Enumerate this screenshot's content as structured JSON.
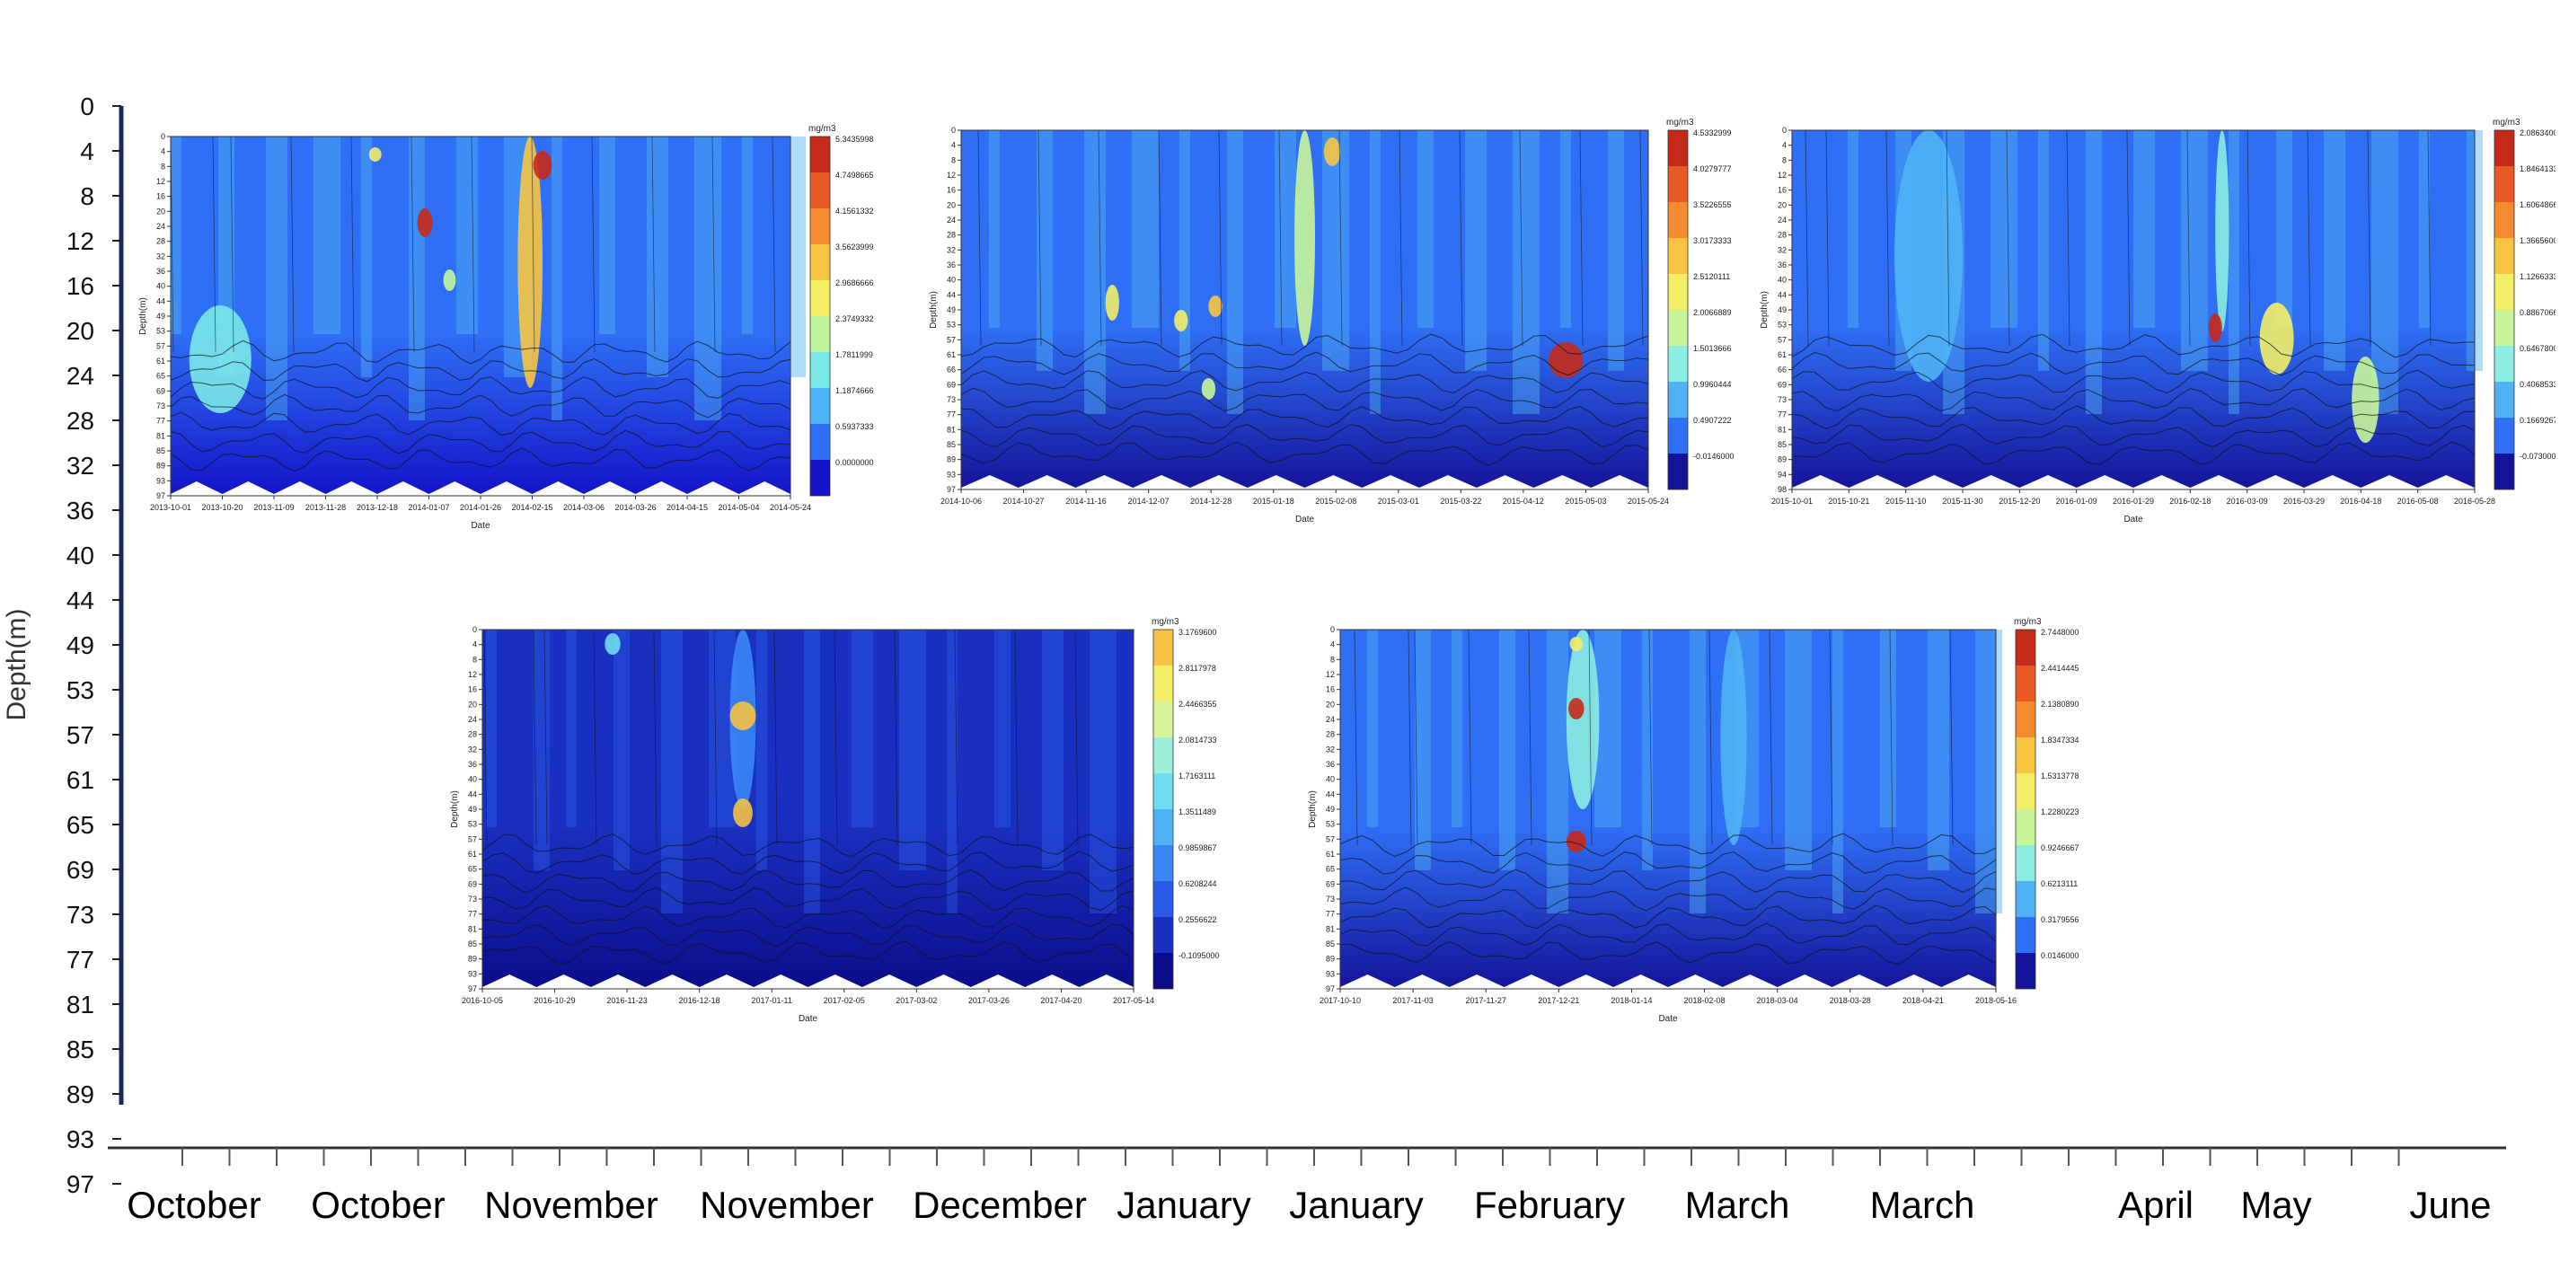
{
  "outer_axis": {
    "ylabel": "Depth(m)",
    "y_ticks": [
      "0",
      "4",
      "8",
      "12",
      "16",
      "20",
      "24",
      "28",
      "32",
      "36",
      "40",
      "44",
      "49",
      "53",
      "57",
      "61",
      "65",
      "69",
      "73",
      "77",
      "81",
      "85",
      "89",
      "93",
      "97"
    ],
    "month_labels": [
      "October",
      "October",
      "November",
      "November",
      "December",
      "January",
      "January",
      "February",
      "March",
      "March",
      "April",
      "May",
      "June"
    ],
    "axis_color": "#1a2a5e"
  },
  "colors": {
    "contour_low": "#00008f",
    "contour_mid": "#3a7dff",
    "contour_high": "#ffe85a",
    "contour_peak": "#d7301f",
    "mask": "#ffffff"
  },
  "chart_data": [
    {
      "type": "heatmap",
      "xlabel": "Date",
      "ylabel": "Depth(m)",
      "unit": "mg/m3",
      "depth_ticks": [
        "0",
        "4",
        "8",
        "12",
        "16",
        "20",
        "24",
        "28",
        "32",
        "36",
        "40",
        "44",
        "49",
        "53",
        "57",
        "61",
        "65",
        "69",
        "73",
        "77",
        "81",
        "85",
        "89",
        "93",
        "97"
      ],
      "date_ticks": [
        "2013-10-01",
        "2013-10-20",
        "2013-11-09",
        "2013-11-28",
        "2013-12-18",
        "2014-01-07",
        "2014-01-26",
        "2014-02-15",
        "2014-03-06",
        "2014-03-26",
        "2014-04-15",
        "2014-05-04",
        "2014-05-24"
      ],
      "colorbar_ticks": [
        "5.3435998",
        "4.7498665",
        "4.1561332",
        "3.5623999",
        "2.9686666",
        "2.3749332",
        "1.7811999",
        "1.1874666",
        "0.5937333",
        "0.0000000"
      ],
      "colorbar_colors": [
        "#c62a1a",
        "#e85a24",
        "#f58b2e",
        "#f7c542",
        "#f2ee66",
        "#bff59d",
        "#7be8e8",
        "#4fb2f5",
        "#2f6ff5",
        "#1414c8"
      ]
    },
    {
      "type": "heatmap",
      "xlabel": "Date",
      "ylabel": "Depth(m)",
      "unit": "mg/m3",
      "depth_ticks": [
        "0",
        "4",
        "8",
        "12",
        "16",
        "20",
        "24",
        "28",
        "32",
        "36",
        "40",
        "44",
        "49",
        "53",
        "57",
        "61",
        "66",
        "69",
        "73",
        "77",
        "81",
        "85",
        "89",
        "93",
        "97"
      ],
      "date_ticks": [
        "2014-10-06",
        "2014-10-27",
        "2014-11-16",
        "2014-12-07",
        "2014-12-28",
        "2015-01-18",
        "2015-02-08",
        "2015-03-01",
        "2015-03-22",
        "2015-04-12",
        "2015-05-03",
        "2015-05-24"
      ],
      "colorbar_ticks": [
        "4.5332999",
        "4.0279777",
        "3.5226555",
        "3.0173333",
        "2.5120111",
        "2.0066889",
        "1.5013666",
        "0.9960444",
        "0.4907222",
        "-0.0146000"
      ],
      "colorbar_colors": [
        "#c62a1a",
        "#e85a24",
        "#f58b2e",
        "#f7c542",
        "#f2ee66",
        "#c8f59a",
        "#8bece0",
        "#4fb2f5",
        "#2f6ff5",
        "#14149a"
      ]
    },
    {
      "type": "heatmap",
      "xlabel": "Date",
      "ylabel": "Depth(m)",
      "unit": "mg/m3",
      "depth_ticks": [
        "0",
        "4",
        "8",
        "12",
        "16",
        "20",
        "24",
        "28",
        "32",
        "36",
        "40",
        "44",
        "49",
        "53",
        "57",
        "61",
        "66",
        "69",
        "73",
        "77",
        "81",
        "85",
        "89",
        "94",
        "98"
      ],
      "date_ticks": [
        "2015-10-01",
        "2015-10-21",
        "2015-11-10",
        "2015-11-30",
        "2015-12-20",
        "2016-01-09",
        "2016-01-29",
        "2016-02-18",
        "2016-03-09",
        "2016-03-29",
        "2016-04-18",
        "2016-05-08",
        "2016-05-28"
      ],
      "colorbar_ticks": [
        "2.0863400",
        "1.8464133",
        "1.6064866",
        "1.3665600",
        "1.1266333",
        "0.8867066",
        "0.6467800",
        "0.4068533",
        "0.1669267",
        "-0.0730000"
      ],
      "colorbar_colors": [
        "#c62a1a",
        "#e85a24",
        "#f58b2e",
        "#f7c542",
        "#f2ee66",
        "#c8f59a",
        "#8bece0",
        "#4fb2f5",
        "#2f6ff5",
        "#14149a"
      ]
    },
    {
      "type": "heatmap",
      "xlabel": "Date",
      "ylabel": "Depth(m)",
      "unit": "mg/m3",
      "depth_ticks": [
        "0",
        "4",
        "8",
        "12",
        "16",
        "20",
        "24",
        "28",
        "32",
        "36",
        "40",
        "44",
        "49",
        "53",
        "57",
        "61",
        "65",
        "69",
        "73",
        "77",
        "81",
        "85",
        "89",
        "93",
        "97"
      ],
      "date_ticks": [
        "2016-10-05",
        "2016-10-29",
        "2016-11-23",
        "2016-12-18",
        "2017-01-11",
        "2017-02-05",
        "2017-03-02",
        "2017-03-26",
        "2017-04-20",
        "2017-05-14"
      ],
      "colorbar_ticks": [
        "3.1769600",
        "2.8117978",
        "2.4466355",
        "2.0814733",
        "1.7163111",
        "1.3511489",
        "0.9859867",
        "0.6208244",
        "0.2556622",
        "-0.1095000"
      ],
      "colorbar_colors": [
        "#f5c242",
        "#f2ee66",
        "#d8f59a",
        "#9cf0d8",
        "#6fdcf0",
        "#4fb2f5",
        "#3a86f5",
        "#2a5ae8",
        "#1a30c0",
        "#0c0c8a"
      ]
    },
    {
      "type": "heatmap",
      "xlabel": "Date",
      "ylabel": "Depth(m)",
      "unit": "mg/m3",
      "depth_ticks": [
        "0",
        "4",
        "8",
        "12",
        "16",
        "20",
        "24",
        "28",
        "32",
        "36",
        "40",
        "44",
        "49",
        "53",
        "57",
        "61",
        "65",
        "69",
        "73",
        "77",
        "81",
        "85",
        "89",
        "93",
        "97"
      ],
      "date_ticks": [
        "2017-10-10",
        "2017-11-03",
        "2017-11-27",
        "2017-12-21",
        "2018-01-14",
        "2018-02-08",
        "2018-03-04",
        "2018-03-28",
        "2018-04-21",
        "2018-05-16"
      ],
      "colorbar_ticks": [
        "2.7448000",
        "2.4414445",
        "2.1380890",
        "1.8347334",
        "1.5313778",
        "1.2280223",
        "0.9246667",
        "0.6213111",
        "0.3179556",
        "0.0146000"
      ],
      "colorbar_colors": [
        "#c62a1a",
        "#e85a24",
        "#f58b2e",
        "#f7c542",
        "#f2ee66",
        "#c8f59a",
        "#8bece0",
        "#4fb2f5",
        "#2f6ff5",
        "#14149a"
      ]
    }
  ]
}
